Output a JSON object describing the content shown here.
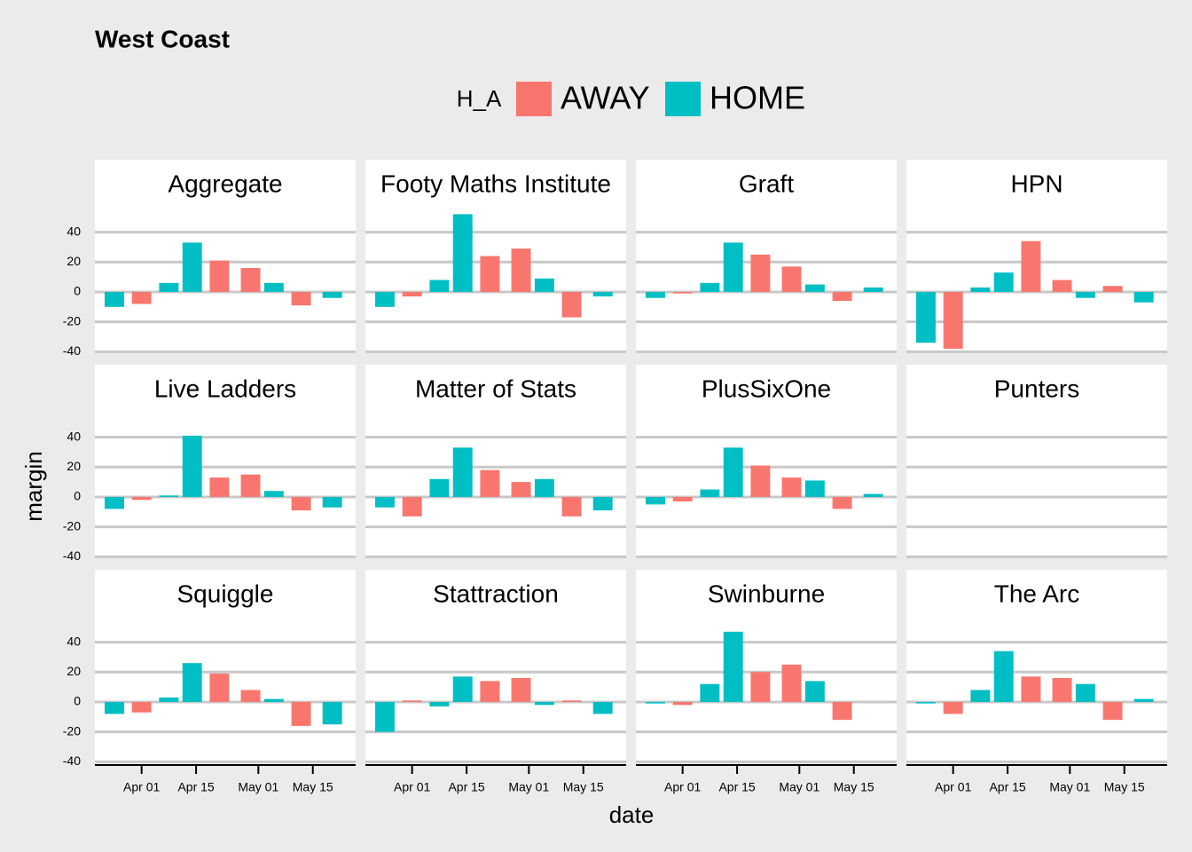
{
  "chart_data": {
    "type": "bar",
    "title": "West Coast",
    "legend_title": "H_A",
    "xlabel": "date",
    "ylabel": "margin",
    "series": [
      {
        "name": "AWAY",
        "color": "#f8766d"
      },
      {
        "name": "HOME",
        "color": "#00bfc4"
      }
    ],
    "x": [
      "Mar 25",
      "Apr 01",
      "Apr 08",
      "Apr 14",
      "Apr 21",
      "Apr 29",
      "May 05",
      "May 12",
      "May 20"
    ],
    "h_a": [
      "HOME",
      "AWAY",
      "HOME",
      "HOME",
      "AWAY",
      "AWAY",
      "HOME",
      "AWAY",
      "HOME"
    ],
    "xlim": [
      "Mar 20",
      "May 26"
    ],
    "xticks": [
      "Apr 01",
      "Apr 15",
      "May 01",
      "May 15"
    ],
    "ylim": [
      -41,
      54
    ],
    "yticks": [
      -40,
      -20,
      0,
      20,
      40
    ],
    "grid": true,
    "facets": [
      {
        "title": "Aggregate",
        "values": [
          -10,
          -8,
          6,
          33,
          21,
          16,
          6,
          -9,
          -4
        ]
      },
      {
        "title": "Footy Maths Institute",
        "values": [
          -10,
          -3,
          8,
          52,
          24,
          29,
          9,
          -17,
          -3
        ]
      },
      {
        "title": "Graft",
        "values": [
          -4,
          -1,
          6,
          33,
          25,
          17,
          5,
          -6,
          3
        ]
      },
      {
        "title": "HPN",
        "values": [
          -34,
          -38,
          3,
          13,
          34,
          8,
          -4,
          4,
          -7
        ]
      },
      {
        "title": "Live Ladders",
        "values": [
          -8,
          -2,
          1,
          41,
          13,
          15,
          4,
          -9,
          -7
        ]
      },
      {
        "title": "Matter of Stats",
        "values": [
          -7,
          -13,
          12,
          33,
          18,
          10,
          12,
          -13,
          -9
        ]
      },
      {
        "title": "PlusSixOne",
        "values": [
          -5,
          -3,
          5,
          33,
          21,
          13,
          11,
          -8,
          2
        ]
      },
      {
        "title": "Punters",
        "values": [
          null,
          null,
          null,
          null,
          null,
          null,
          null,
          null,
          null
        ]
      },
      {
        "title": "Squiggle",
        "values": [
          -8,
          -7,
          3,
          26,
          19,
          8,
          2,
          -16,
          -15
        ]
      },
      {
        "title": "Stattraction",
        "values": [
          -20,
          1,
          -3,
          17,
          14,
          16,
          -2,
          1,
          -8
        ]
      },
      {
        "title": "Swinburne",
        "values": [
          -1,
          -2,
          12,
          47,
          20,
          25,
          14,
          -12,
          null
        ]
      },
      {
        "title": "The Arc",
        "values": [
          -1,
          -8,
          8,
          34,
          17,
          16,
          12,
          -12,
          2
        ]
      }
    ]
  }
}
